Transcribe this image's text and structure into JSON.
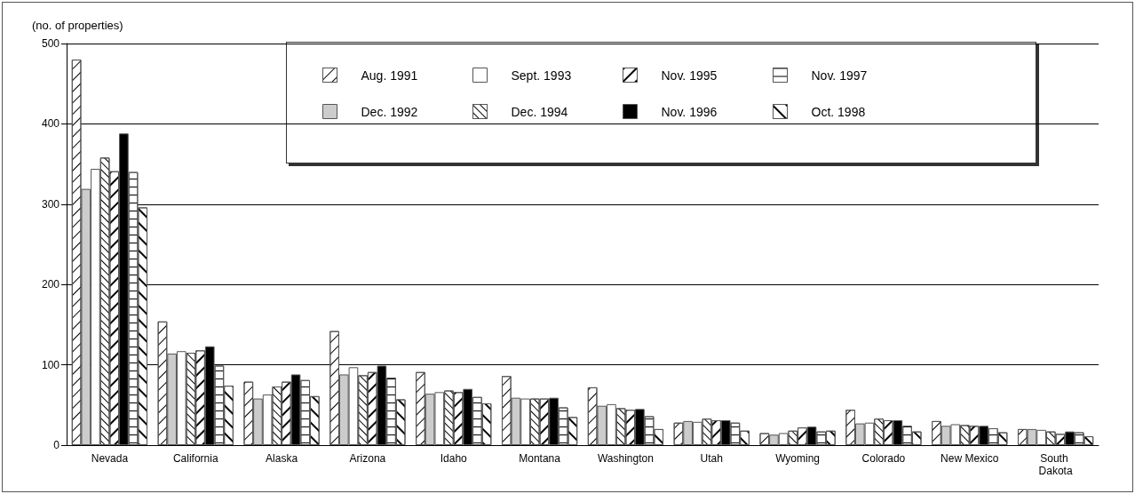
{
  "chart_data": {
    "type": "bar",
    "ylabel": "(no. of properties)",
    "categories": [
      "Nevada",
      "California",
      "Alaska",
      "Arizona",
      "Idaho",
      "Montana",
      "Washington",
      "Utah",
      "Wyoming",
      "Colorado",
      "New Mexico",
      "South Dakota"
    ],
    "series": [
      {
        "name": "Aug. 1991",
        "color": "#ffffff",
        "values": [
          480,
          154,
          79,
          142,
          91,
          86,
          72,
          28,
          15,
          44,
          30,
          20
        ]
      },
      {
        "name": "Dec. 1992",
        "color": "#cccccc",
        "values": [
          319,
          114,
          58,
          88,
          64,
          59,
          49,
          30,
          13,
          27,
          24,
          20
        ]
      },
      {
        "name": "Sept. 1993",
        "color": "#ffffff",
        "values": [
          344,
          117,
          63,
          97,
          66,
          58,
          51,
          29,
          15,
          28,
          26,
          19
        ]
      },
      {
        "name": "Dec. 1994",
        "color": "#ffffff",
        "values": [
          358,
          115,
          73,
          87,
          68,
          58,
          46,
          33,
          18,
          33,
          25,
          17
        ]
      },
      {
        "name": "Nov. 1995",
        "color": "#ffffff",
        "values": [
          341,
          118,
          79,
          91,
          66,
          58,
          44,
          31,
          22,
          31,
          24,
          14
        ]
      },
      {
        "name": "Nov. 1996",
        "color": "#000000",
        "values": [
          388,
          123,
          88,
          99,
          70,
          59,
          45,
          31,
          23,
          31,
          24,
          17
        ]
      },
      {
        "name": "Nov. 1997",
        "color": "#ffffff",
        "values": [
          340,
          99,
          81,
          84,
          60,
          47,
          36,
          28,
          17,
          24,
          21,
          16
        ]
      },
      {
        "name": "Oct. 1998",
        "color": "#ffffff",
        "values": [
          296,
          74,
          61,
          57,
          52,
          35,
          20,
          18,
          18,
          17,
          16,
          11
        ]
      }
    ],
    "ylim": [
      0,
      500
    ],
    "yticks": [
      0,
      100,
      200,
      300,
      400,
      500
    ],
    "grid": "y",
    "legend": "top"
  }
}
